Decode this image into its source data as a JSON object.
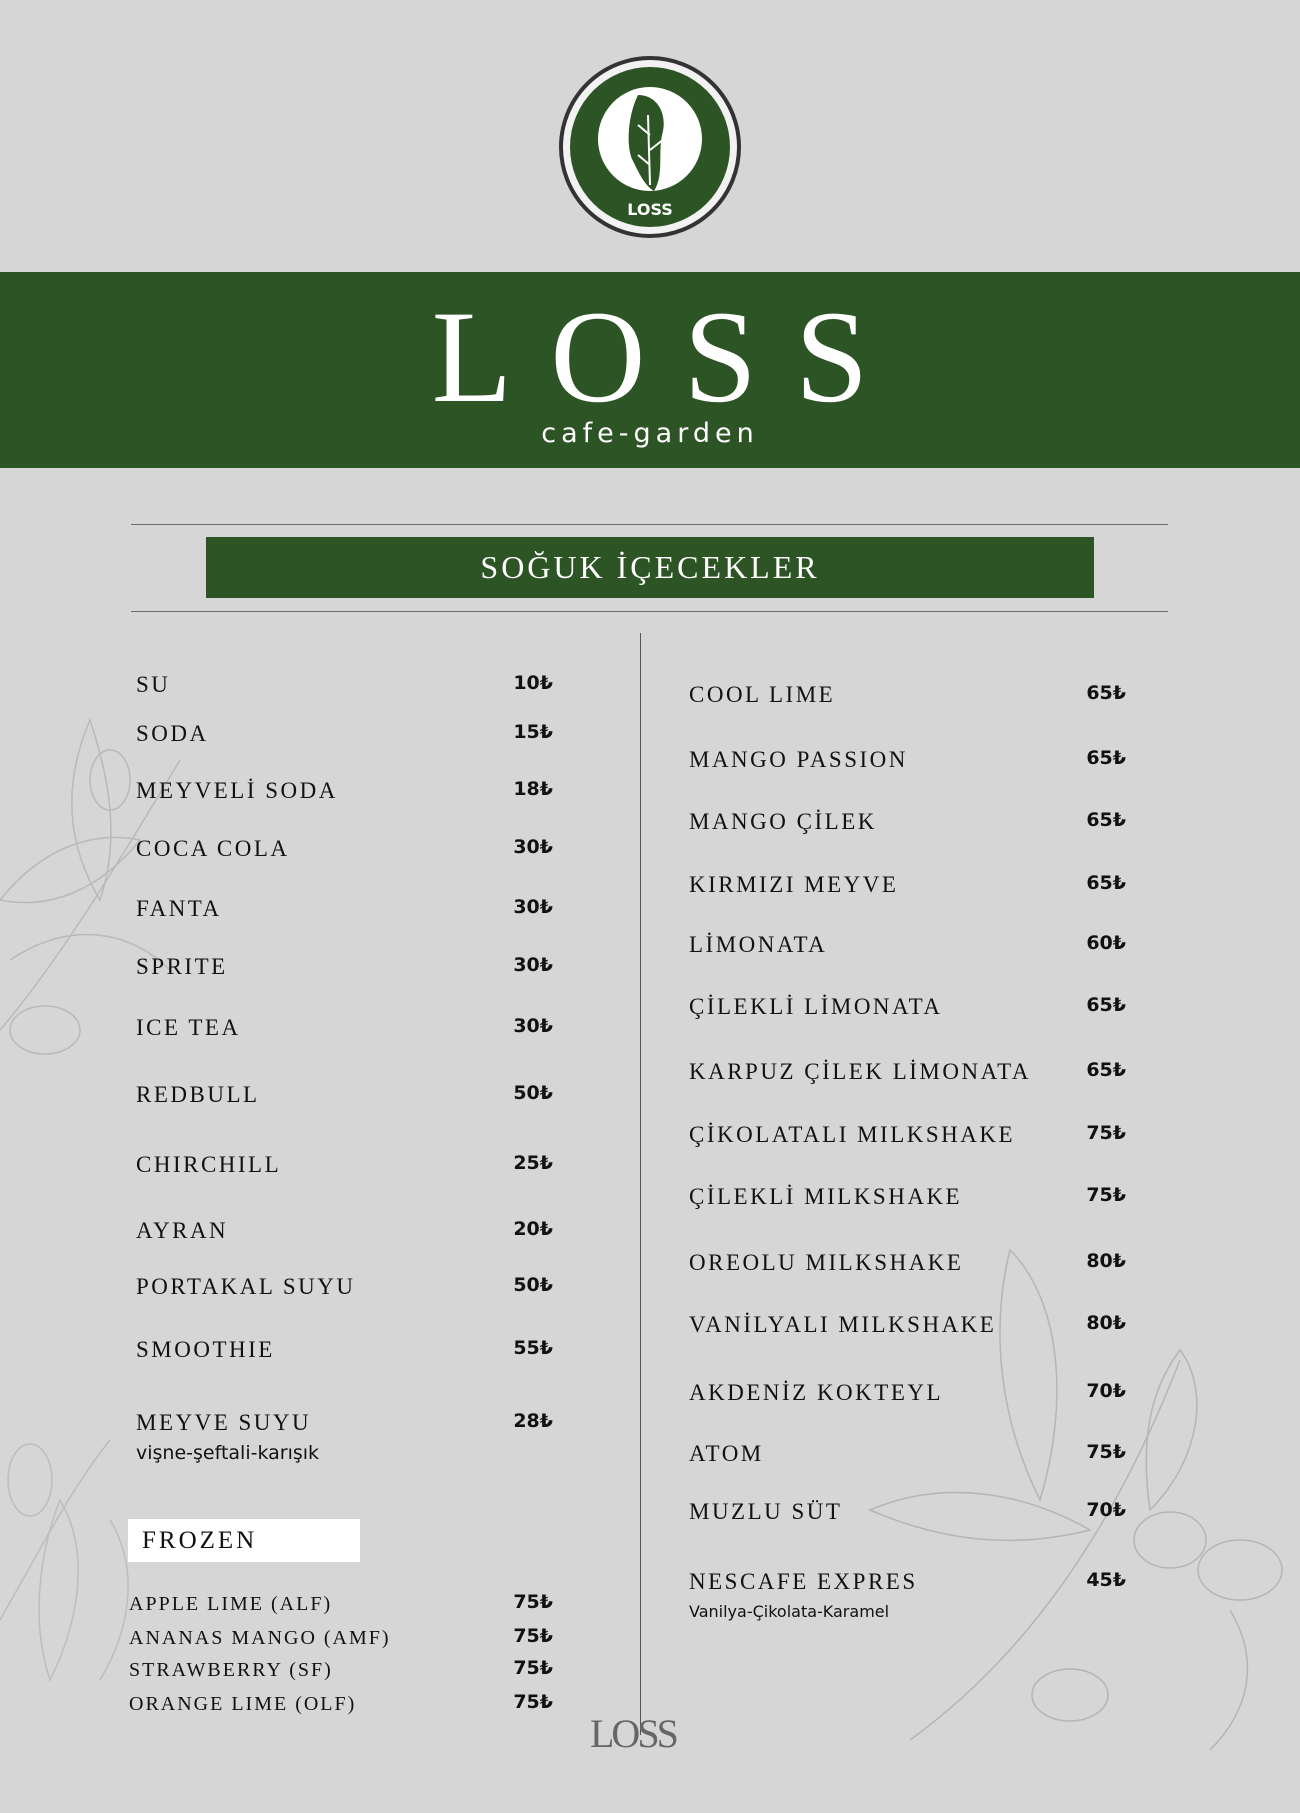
{
  "header": {
    "brand": "LOSS",
    "tagline": "cafe-garden",
    "logo_text": "LOSS"
  },
  "section_title": "SOĞUK İÇECEKLER",
  "colors": {
    "brand_green": "#2d5424",
    "background": "#d6d6d6"
  },
  "left_items": [
    {
      "name": "SU",
      "price": "10₺"
    },
    {
      "name": "SODA",
      "price": "15₺"
    },
    {
      "name": "MEYVELİ SODA",
      "price": "18₺"
    },
    {
      "name": "COCA COLA",
      "price": "30₺"
    },
    {
      "name": "FANTA",
      "price": "30₺"
    },
    {
      "name": "SPRITE",
      "price": "30₺"
    },
    {
      "name": "ICE TEA",
      "price": "30₺"
    },
    {
      "name": "REDBULL",
      "price": "50₺"
    },
    {
      "name": "CHIRCHILL",
      "price": "25₺"
    },
    {
      "name": "AYRAN",
      "price": "20₺"
    },
    {
      "name": "PORTAKAL SUYU",
      "price": "50₺"
    },
    {
      "name": "SMOOTHIE",
      "price": "55₺"
    },
    {
      "name": "MEYVE SUYU",
      "price": "28₺",
      "note": "vişne-şeftali-karışık"
    }
  ],
  "frozen": {
    "title": "FROZEN",
    "items": [
      {
        "name": "APPLE LIME (ALF)",
        "price": "75₺"
      },
      {
        "name": "ANANAS MANGO (AMF)",
        "price": "75₺"
      },
      {
        "name": "STRAWBERRY (SF)",
        "price": "75₺"
      },
      {
        "name": "ORANGE LIME (OLF)",
        "price": "75₺"
      }
    ]
  },
  "right_items": [
    {
      "name": "COOL LIME",
      "price": "65₺"
    },
    {
      "name": "MANGO PASSION",
      "price": "65₺"
    },
    {
      "name": "MANGO ÇİLEK",
      "price": "65₺"
    },
    {
      "name": "KIRMIZI MEYVE",
      "price": "65₺"
    },
    {
      "name": "LİMONATA",
      "price": "60₺"
    },
    {
      "name": "ÇİLEKLİ LİMONATA",
      "price": "65₺"
    },
    {
      "name": "KARPUZ ÇİLEK LİMONATA",
      "price": "65₺"
    },
    {
      "name": "ÇİKOLATALI MILKSHAKE",
      "price": "75₺"
    },
    {
      "name": "ÇİLEKLİ MILKSHAKE",
      "price": "75₺"
    },
    {
      "name": "OREOLU MILKSHAKE",
      "price": "80₺"
    },
    {
      "name": "VANİLYALI  MILKSHAKE",
      "price": "80₺"
    },
    {
      "name": "AKDENİZ KOKTEYL",
      "price": "70₺"
    },
    {
      "name": "ATOM",
      "price": "75₺"
    },
    {
      "name": "MUZLU SÜT",
      "price": "70₺"
    },
    {
      "name": "NESCAFE EXPRES",
      "price": "45₺",
      "note": "Vanilya-Çikolata-Karamel"
    }
  ],
  "footer": {
    "logo_text": "LOSS"
  }
}
